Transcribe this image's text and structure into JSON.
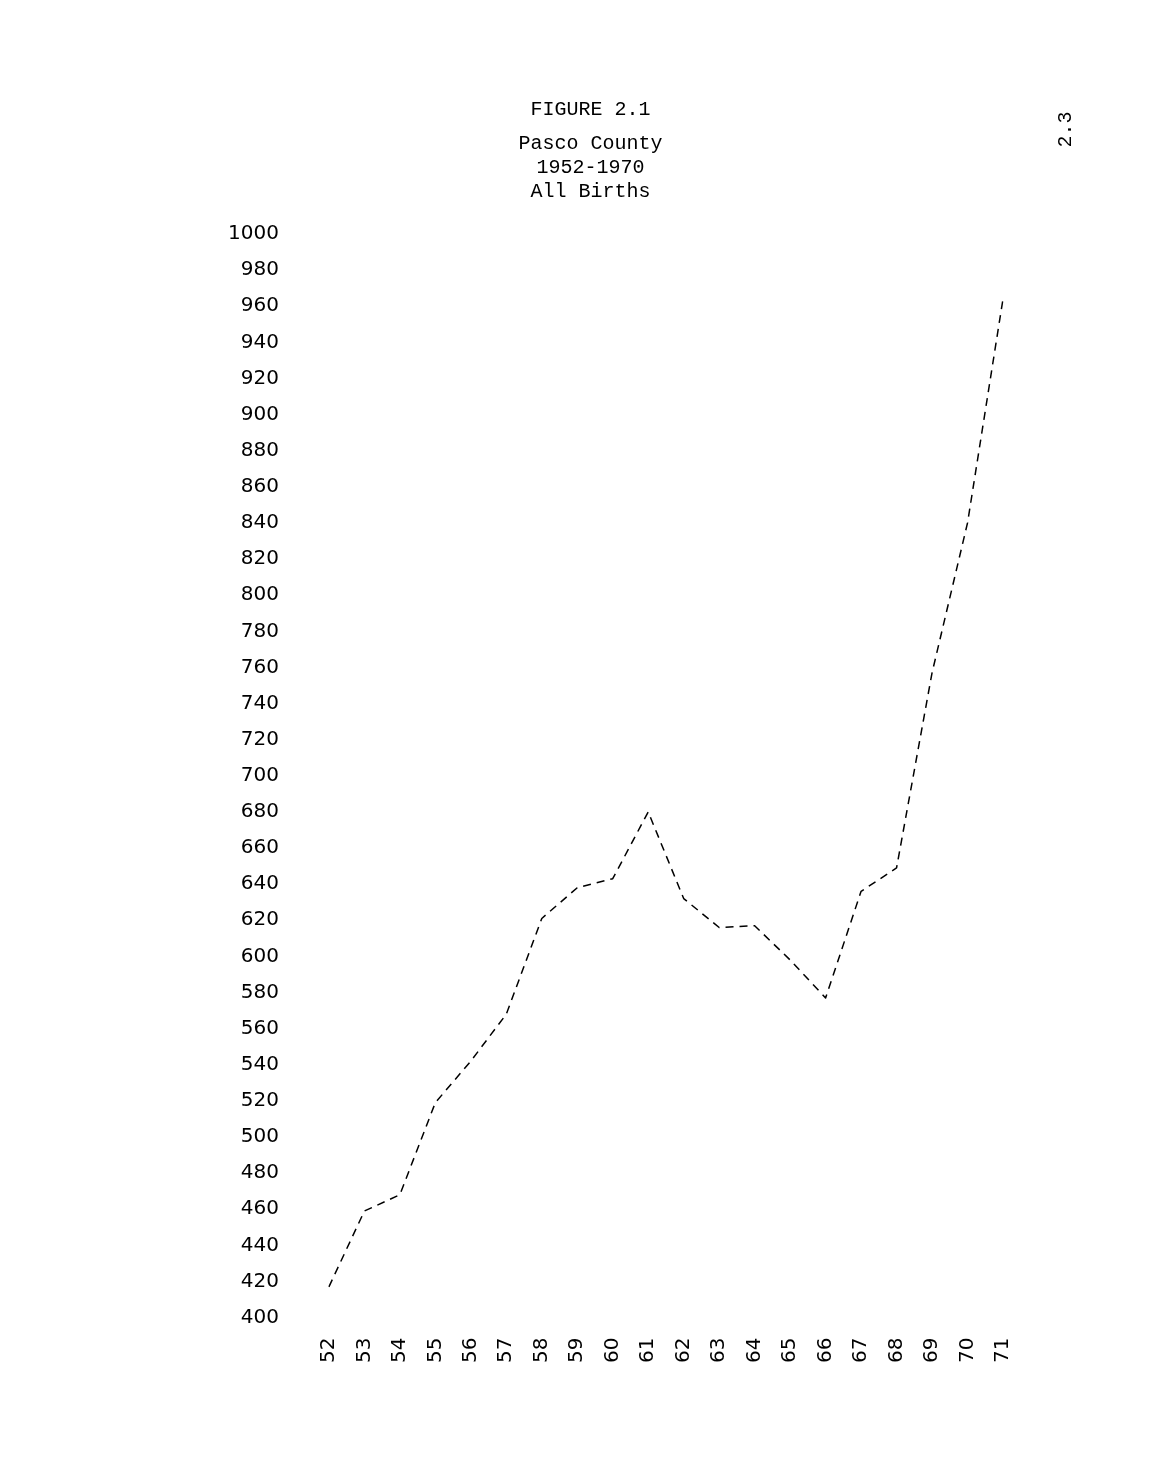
{
  "chart_data": {
    "type": "line",
    "title": "FIGURE 2.1",
    "subtitle": "Pasco County\n1952-1970\nAll Births",
    "categories": [
      "52",
      "53",
      "54",
      "55",
      "56",
      "57",
      "58",
      "59",
      "60",
      "61",
      "62",
      "63",
      "64",
      "65",
      "66",
      "67",
      "68",
      "69",
      "70",
      "71"
    ],
    "series": [
      {
        "color": "#000000",
        "values": [
          417,
          459,
          468,
          519,
          542,
          568,
          621,
          638,
          643,
          680,
          632,
          616,
          617,
          598,
          577,
          636,
          649,
          757,
          840,
          964
        ]
      }
    ],
    "ylim": [
      400,
      1000
    ],
    "yticks": [
      400,
      420,
      440,
      460,
      480,
      500,
      520,
      540,
      560,
      580,
      600,
      620,
      640,
      660,
      680,
      700,
      720,
      740,
      760,
      780,
      800,
      820,
      840,
      860,
      880,
      900,
      920,
      940,
      960,
      980,
      1000
    ],
    "grid": false,
    "legend": false,
    "marker": "none",
    "line_style": "dashed",
    "annotations": [
      "2.3"
    ]
  }
}
